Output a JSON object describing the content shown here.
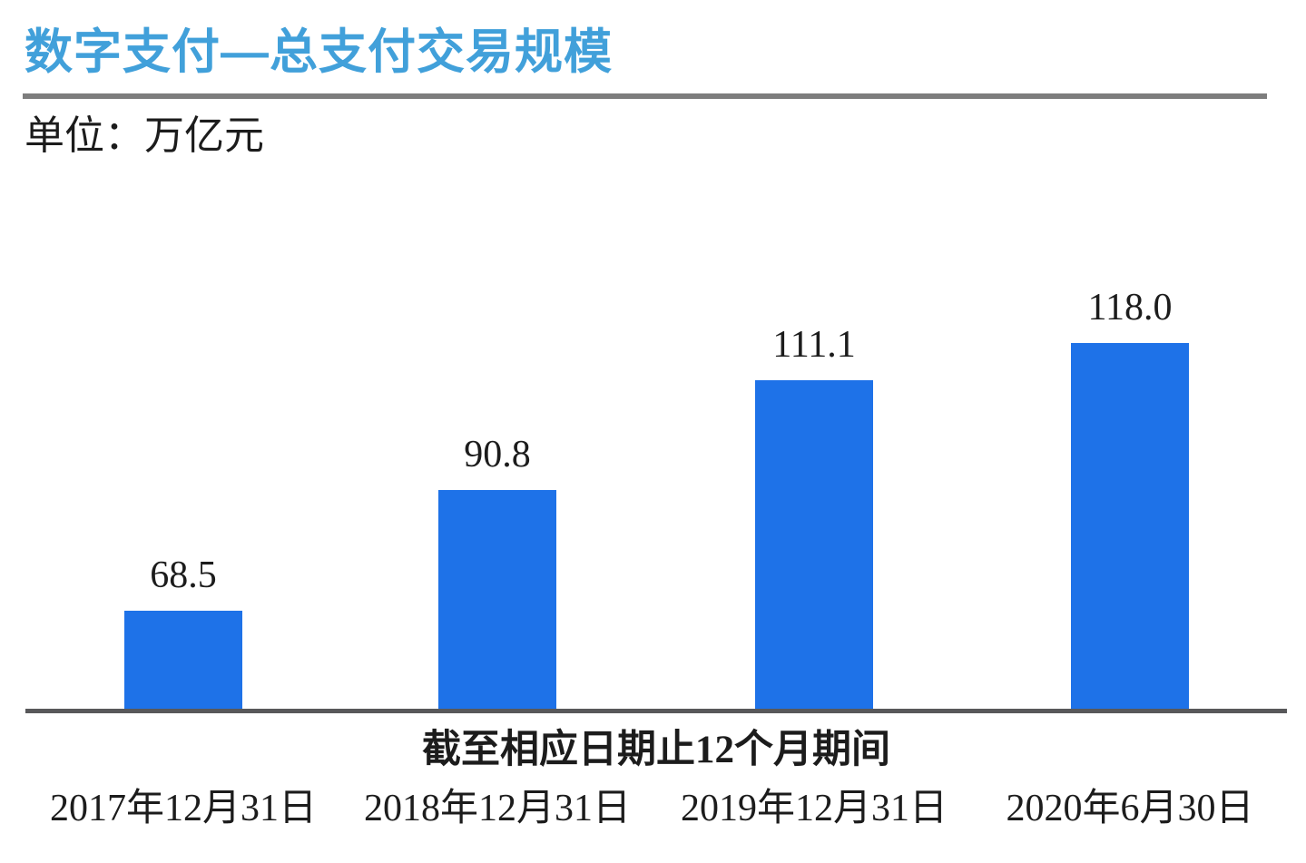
{
  "header": {
    "title": "数字支付—总支付交易规模",
    "unit_label": "单位：万亿元"
  },
  "chart_data": {
    "type": "bar",
    "title": "数字支付—总支付交易规模",
    "unit": "万亿元",
    "categories": [
      "2017年12月31日",
      "2018年12月31日",
      "2019年12月31日",
      "2020年6月30日"
    ],
    "values": [
      68.5,
      90.8,
      111.1,
      118.0
    ],
    "value_labels": [
      "68.5",
      "90.8",
      "111.1",
      "118.0"
    ],
    "xlabel": "截至相应日期止12个月期间",
    "ylabel": "",
    "ylim": [
      50,
      130
    ],
    "grid": false,
    "legend": false,
    "colors": {
      "bar": "#1e72e8",
      "title": "#41a0da",
      "title_rule": "#7d7d7d",
      "axis_line": "#58585a",
      "text": "#1c1c1c"
    }
  }
}
